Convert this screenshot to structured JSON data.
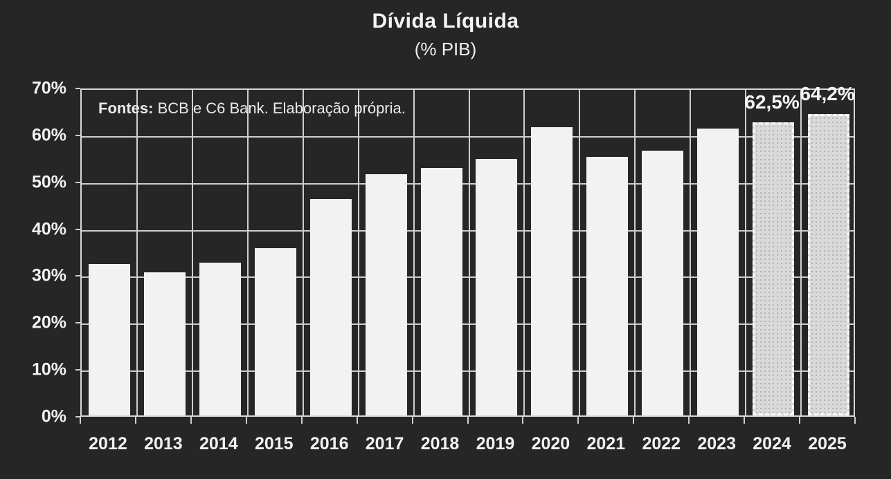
{
  "title": "Dívida Líquida",
  "subtitle": "(% PIB)",
  "source_note": {
    "bold": "Fontes:",
    "text": " BCB e C6 Bank. Elaboração própria."
  },
  "colors": {
    "background": "#262626",
    "bar": "#f2f2f2",
    "forecast_bar_fill": "#d9d9d9",
    "gridline": "#cfcfcf",
    "text": "#f2f2f2"
  },
  "y_axis": {
    "tick_labels": [
      "70%",
      "60%",
      "50%",
      "40%",
      "30%",
      "20%",
      "10%",
      "0%"
    ],
    "min": 0,
    "max": 70,
    "step": 10
  },
  "chart_data": {
    "type": "bar",
    "title": "Dívida Líquida",
    "subtitle": "(% PIB)",
    "categories": [
      "2012",
      "2013",
      "2014",
      "2015",
      "2016",
      "2017",
      "2018",
      "2019",
      "2020",
      "2021",
      "2022",
      "2023",
      "2024",
      "2025"
    ],
    "values": [
      32.2,
      30.5,
      32.6,
      35.6,
      46.1,
      51.4,
      52.8,
      54.7,
      61.4,
      55.1,
      56.4,
      61.1,
      62.5,
      64.2
    ],
    "data_labels": [
      "",
      "",
      "",
      "",
      "",
      "",
      "",
      "",
      "",
      "",
      "",
      "",
      "62,5%",
      "64,2%"
    ],
    "forecast": [
      false,
      false,
      false,
      false,
      false,
      false,
      false,
      false,
      false,
      false,
      false,
      false,
      true,
      true
    ],
    "xlabel": "",
    "ylabel": "",
    "ylim": [
      0,
      70
    ],
    "grid": true,
    "legend": "none",
    "annotation": "Fontes: BCB e C6 Bank. Elaboração própria."
  }
}
